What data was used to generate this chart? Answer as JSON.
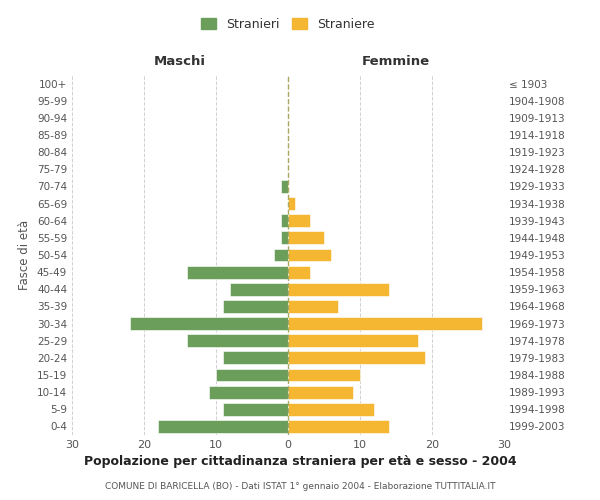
{
  "age_groups": [
    "0-4",
    "5-9",
    "10-14",
    "15-19",
    "20-24",
    "25-29",
    "30-34",
    "35-39",
    "40-44",
    "45-49",
    "50-54",
    "55-59",
    "60-64",
    "65-69",
    "70-74",
    "75-79",
    "80-84",
    "85-89",
    "90-94",
    "95-99",
    "100+"
  ],
  "birth_years": [
    "1999-2003",
    "1994-1998",
    "1989-1993",
    "1984-1988",
    "1979-1983",
    "1974-1978",
    "1969-1973",
    "1964-1968",
    "1959-1963",
    "1954-1958",
    "1949-1953",
    "1944-1948",
    "1939-1943",
    "1934-1938",
    "1929-1933",
    "1924-1928",
    "1919-1923",
    "1914-1918",
    "1909-1913",
    "1904-1908",
    "≤ 1903"
  ],
  "maschi": [
    18,
    9,
    11,
    10,
    9,
    14,
    22,
    9,
    8,
    14,
    2,
    1,
    1,
    0,
    1,
    0,
    0,
    0,
    0,
    0,
    0
  ],
  "femmine": [
    14,
    12,
    9,
    10,
    19,
    18,
    27,
    7,
    14,
    3,
    6,
    5,
    3,
    1,
    0,
    0,
    0,
    0,
    0,
    0,
    0
  ],
  "color_maschi": "#6a9e5a",
  "color_femmine": "#f5b731",
  "title": "Popolazione per cittadinanza straniera per età e sesso - 2004",
  "subtitle": "COMUNE DI BARICELLA (BO) - Dati ISTAT 1° gennaio 2004 - Elaborazione TUTTITALIA.IT",
  "xlabel_left": "Maschi",
  "xlabel_right": "Femmine",
  "ylabel_left": "Fasce di età",
  "legend_maschi": "Stranieri",
  "legend_femmine": "Straniere",
  "xlim": 30,
  "background_color": "#ffffff",
  "grid_color": "#cccccc"
}
